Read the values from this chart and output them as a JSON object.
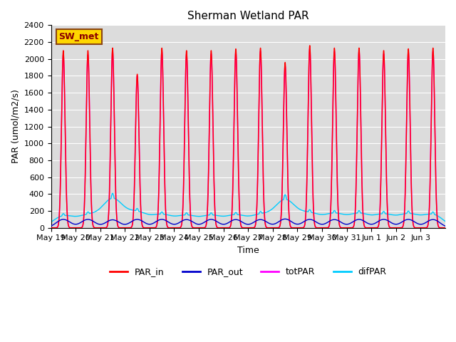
{
  "title": "Sherman Wetland PAR",
  "ylabel": "PAR (umol/m2/s)",
  "xlabel": "Time",
  "annotation": "SW_met",
  "ylim": [
    0,
    2400
  ],
  "background_color": "#dcdcdc",
  "x_tick_labels": [
    "May 19",
    "May 20",
    "May 21",
    "May 22",
    "May 23",
    "May 24",
    "May 25",
    "May 26",
    "May 27",
    "May 28",
    "May 29",
    "May 30",
    "May 31",
    "Jun 1",
    "Jun 2",
    "Jun 3"
  ],
  "legend_entries": [
    "PAR_in",
    "PAR_out",
    "totPAR",
    "difPAR"
  ],
  "legend_colors": [
    "#ff0000",
    "#0000cc",
    "#ff00ff",
    "#00ccff"
  ],
  "n_days": 16,
  "points_per_day": 288,
  "par_in_peaks": [
    2100,
    2100,
    2130,
    1820,
    2130,
    2100,
    2100,
    2120,
    2130,
    1960,
    2160,
    2130,
    2130,
    2100,
    2120,
    2130
  ],
  "totpar_peaks": [
    2050,
    2050,
    2090,
    1800,
    2090,
    2060,
    2060,
    2080,
    2090,
    1920,
    2120,
    2090,
    2090,
    2060,
    2080,
    2090
  ],
  "par_out_peaks": [
    100,
    100,
    95,
    100,
    100,
    98,
    100,
    98,
    98,
    105,
    100,
    98,
    100,
    100,
    100,
    98
  ],
  "difpar_peaks": [
    160,
    160,
    390,
    200,
    170,
    160,
    160,
    165,
    165,
    375,
    185,
    185,
    185,
    175,
    180,
    180
  ],
  "par_in_hw": 0.07,
  "totpar_hw": 0.072,
  "par_out_hw": 0.22,
  "difpar_hw": 0.3
}
